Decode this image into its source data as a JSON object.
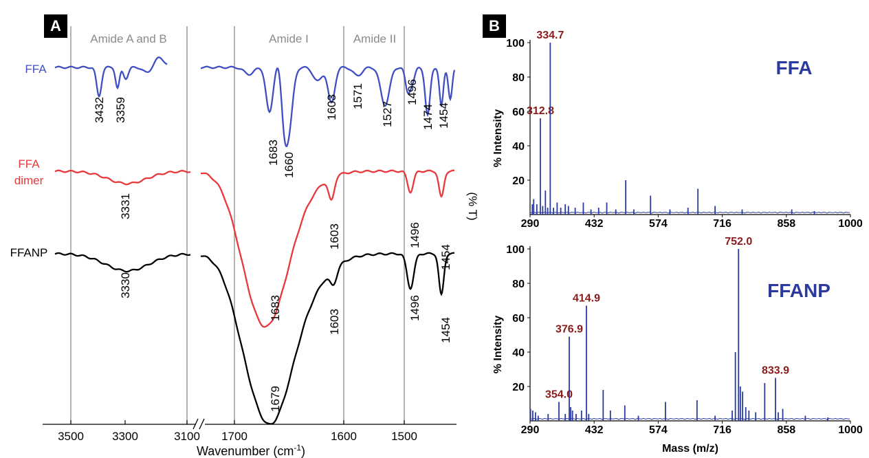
{
  "panels": {
    "A": "A",
    "B": "B"
  },
  "chart_data": [
    {
      "type": "line",
      "panel": "A",
      "xlabel_text": "Wavenumber (cm",
      "xlabel_sup": "-1",
      "xlabel_close": ")",
      "ylabel": "(% T)",
      "x_ticks": [
        "3500",
        "3300",
        "3100",
        "1700",
        "1600",
        "1500"
      ],
      "broken_axis": true,
      "regions": [
        "Amide A and B",
        "Amide I",
        "Amide II"
      ],
      "series": [
        {
          "name": "FFA",
          "color": "#3f4fc2",
          "peaks": [
            "3432",
            "3359",
            "1683",
            "1660",
            "1603",
            "1571",
            "1527",
            "1496",
            "1474",
            "1454"
          ]
        },
        {
          "name": "FFA dimer",
          "name_lines": [
            "FFA",
            "dimer"
          ],
          "color": "#e8383b",
          "peaks": [
            "3331",
            "1683",
            "1603",
            "1496",
            "1454"
          ]
        },
        {
          "name": "FFANP",
          "color": "#000000",
          "peaks": [
            "3330",
            "1679",
            "1603",
            "1496",
            "1454"
          ]
        }
      ]
    },
    {
      "type": "bar",
      "panel": "B",
      "title": "FFA",
      "xlabel": "",
      "ylabel": "% Intensity",
      "xlim": [
        290,
        1000
      ],
      "ylim": [
        0,
        100
      ],
      "x_ticks": [
        "290",
        "432",
        "574",
        "716",
        "858",
        "1000"
      ],
      "y_ticks": [
        "20",
        "40",
        "60",
        "80",
        "100"
      ],
      "color": "#2a3a9e",
      "peaks": [
        {
          "x": 295,
          "y": 6
        },
        {
          "x": 298,
          "y": 9
        },
        {
          "x": 305,
          "y": 6
        },
        {
          "x": 312.8,
          "y": 56,
          "label": "312.8"
        },
        {
          "x": 318,
          "y": 5
        },
        {
          "x": 324,
          "y": 14
        },
        {
          "x": 329,
          "y": 4
        },
        {
          "x": 334.7,
          "y": 100,
          "label": "334.7"
        },
        {
          "x": 342,
          "y": 4
        },
        {
          "x": 350,
          "y": 7
        },
        {
          "x": 358,
          "y": 4
        },
        {
          "x": 368,
          "y": 6
        },
        {
          "x": 375,
          "y": 5
        },
        {
          "x": 390,
          "y": 4
        },
        {
          "x": 408,
          "y": 7
        },
        {
          "x": 425,
          "y": 3
        },
        {
          "x": 442,
          "y": 4
        },
        {
          "x": 460,
          "y": 7
        },
        {
          "x": 480,
          "y": 3
        },
        {
          "x": 502,
          "y": 20
        },
        {
          "x": 520,
          "y": 3
        },
        {
          "x": 557,
          "y": 11
        },
        {
          "x": 600,
          "y": 3
        },
        {
          "x": 640,
          "y": 4
        },
        {
          "x": 662,
          "y": 15
        },
        {
          "x": 700,
          "y": 5
        },
        {
          "x": 760,
          "y": 3
        },
        {
          "x": 870,
          "y": 3
        },
        {
          "x": 920,
          "y": 2
        }
      ]
    },
    {
      "type": "bar",
      "panel": "B",
      "title": "FFANP",
      "xlabel": "Mass (m/z)",
      "ylabel": "% Intensity",
      "xlim": [
        290,
        1000
      ],
      "ylim": [
        0,
        100
      ],
      "x_ticks": [
        "290",
        "432",
        "574",
        "716",
        "858",
        "1000"
      ],
      "y_ticks": [
        "20",
        "40",
        "60",
        "80",
        "100"
      ],
      "color": "#2a3a9e",
      "peaks": [
        {
          "x": 291,
          "y": 7
        },
        {
          "x": 296,
          "y": 6
        },
        {
          "x": 302,
          "y": 5
        },
        {
          "x": 308,
          "y": 3
        },
        {
          "x": 330,
          "y": 4
        },
        {
          "x": 354.0,
          "y": 11,
          "label": "354.0"
        },
        {
          "x": 368,
          "y": 4
        },
        {
          "x": 376.9,
          "y": 49,
          "label": "376.9"
        },
        {
          "x": 380,
          "y": 8
        },
        {
          "x": 384,
          "y": 6
        },
        {
          "x": 392,
          "y": 4
        },
        {
          "x": 404,
          "y": 6
        },
        {
          "x": 414.9,
          "y": 67,
          "label": "414.9"
        },
        {
          "x": 420,
          "y": 4
        },
        {
          "x": 452,
          "y": 18
        },
        {
          "x": 468,
          "y": 6
        },
        {
          "x": 500,
          "y": 9
        },
        {
          "x": 530,
          "y": 3
        },
        {
          "x": 590,
          "y": 11
        },
        {
          "x": 660,
          "y": 12
        },
        {
          "x": 700,
          "y": 3
        },
        {
          "x": 738,
          "y": 6
        },
        {
          "x": 745,
          "y": 40
        },
        {
          "x": 752.0,
          "y": 100,
          "label": "752.0"
        },
        {
          "x": 756,
          "y": 20
        },
        {
          "x": 761,
          "y": 17
        },
        {
          "x": 768,
          "y": 8
        },
        {
          "x": 775,
          "y": 6
        },
        {
          "x": 790,
          "y": 5
        },
        {
          "x": 810,
          "y": 22
        },
        {
          "x": 833.9,
          "y": 25,
          "label": "833.9"
        },
        {
          "x": 840,
          "y": 5
        },
        {
          "x": 850,
          "y": 7
        },
        {
          "x": 900,
          "y": 3
        },
        {
          "x": 950,
          "y": 2
        }
      ]
    }
  ]
}
